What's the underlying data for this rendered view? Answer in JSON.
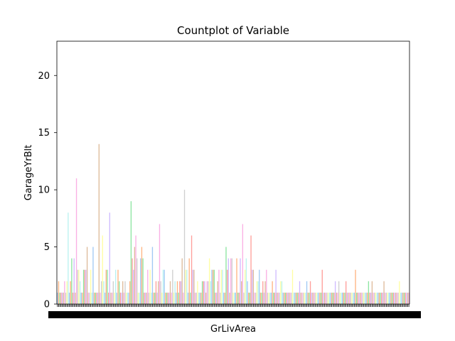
{
  "chart_data": {
    "type": "bar",
    "title": "Countplot of Variable",
    "xlabel": "GrLivArea",
    "ylabel": "GarageYrBlt",
    "ylim": [
      0,
      23
    ],
    "yticks": [
      0,
      5,
      10,
      15,
      20
    ],
    "palette": [
      "#a1c9f4",
      "#ffb482",
      "#8de5a1",
      "#ff9f9b",
      "#d0bbff",
      "#debb9b",
      "#fab0e4",
      "#cfcfcf",
      "#fffea3",
      "#b9f2f0"
    ],
    "values": [
      1,
      2,
      1,
      1,
      1,
      1,
      2,
      1,
      2,
      8,
      1,
      2,
      4,
      1,
      4,
      1,
      11,
      3,
      3,
      2,
      1,
      1,
      3,
      3,
      3,
      5,
      1,
      1,
      3,
      1,
      5,
      1,
      1,
      1,
      1,
      14,
      1,
      2,
      6,
      2,
      1,
      3,
      3,
      1,
      8,
      1,
      1,
      2,
      1,
      3,
      1,
      3,
      2,
      1,
      1,
      2,
      1,
      2,
      1,
      1,
      1,
      2,
      9,
      4,
      3,
      5,
      6,
      4,
      1,
      1,
      4,
      5,
      4,
      1,
      1,
      1,
      3,
      1,
      3,
      1,
      5,
      1,
      1,
      2,
      1,
      2,
      7,
      2,
      1,
      3,
      3,
      1,
      1,
      1,
      1,
      2,
      1,
      3,
      1,
      2,
      1,
      2,
      1,
      2,
      2,
      4,
      1,
      10,
      3,
      3,
      1,
      4,
      1,
      6,
      3,
      3,
      1,
      1,
      2,
      1,
      1,
      1,
      2,
      2,
      2,
      1,
      2,
      2,
      4,
      2,
      3,
      3,
      3,
      1,
      1,
      2,
      3,
      1,
      3,
      3,
      1,
      1,
      5,
      3,
      4,
      1,
      4,
      4,
      1,
      1,
      1,
      4,
      1,
      1,
      4,
      2,
      7,
      1,
      3,
      4,
      2,
      1,
      1,
      6,
      3,
      3,
      1,
      1,
      2,
      2,
      3,
      1,
      1,
      2,
      1,
      2,
      3,
      1,
      1,
      1,
      1,
      2,
      1,
      1,
      3,
      1,
      1,
      1,
      2,
      2,
      1,
      1,
      1,
      1,
      1,
      1,
      1,
      1,
      3,
      1,
      1,
      1,
      1,
      1,
      2,
      1,
      1,
      1,
      1,
      1,
      2,
      1,
      1,
      2,
      1,
      1,
      1,
      1,
      1,
      1,
      1,
      1,
      1,
      3,
      1,
      1,
      1,
      1,
      1,
      1,
      1,
      1,
      1,
      1,
      2,
      1,
      1,
      2,
      1,
      1,
      1,
      1,
      1,
      2,
      1,
      1,
      1,
      1,
      1,
      1,
      1,
      3,
      1,
      1,
      1,
      1,
      1,
      1,
      1,
      1,
      1,
      1,
      2,
      1,
      1,
      2,
      1,
      1,
      1,
      1,
      1,
      1,
      1,
      1,
      1,
      2,
      1,
      1,
      1,
      1,
      1,
      1,
      1,
      1,
      1,
      1,
      1,
      1,
      2,
      1,
      1,
      1,
      1,
      1,
      1,
      1,
      1
    ]
  }
}
